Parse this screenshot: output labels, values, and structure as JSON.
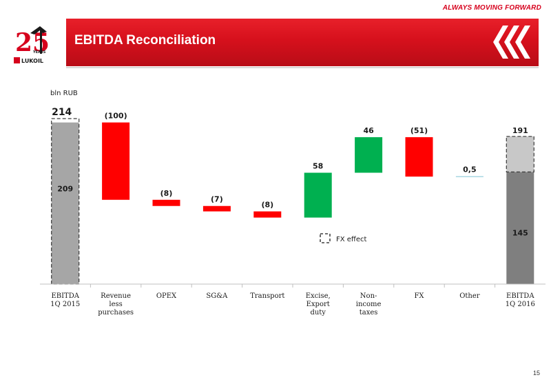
{
  "header": {
    "tagline": "ALWAYS MOVING FORWARD",
    "title": "EBITDA Reconciliation",
    "logo_years": "YEARS",
    "logo_number": "25",
    "logo_brand": "LUKOIL"
  },
  "colors": {
    "start_bar": "#a6a6a6",
    "end_bar": "#7f7f7f",
    "fx_effect_bar": "#c8c8c8",
    "negative": "#ff0000",
    "positive": "#00b050",
    "neutral": "#92cddc",
    "brand_red": "#d6001c"
  },
  "chart_data": {
    "type": "bar",
    "subtype": "waterfall",
    "unit": "bln RUB",
    "ylim": [
      0,
      280
    ],
    "categories": [
      "EBITDA\n1Q 2015",
      "Revenue\nless\npurchases",
      "OPEX",
      "SG&A",
      "Transport",
      "Excise,\nExport\nduty",
      "Non-\nincome\ntaxes",
      "FX",
      "Other",
      "EBITDA\n1Q 2016"
    ],
    "steps": [
      {
        "kind": "total",
        "value": 209,
        "fx_effect_total": 214,
        "value_label": "209",
        "total_label": "214"
      },
      {
        "kind": "delta",
        "value": -100,
        "value_label": "(100)"
      },
      {
        "kind": "delta",
        "value": -8,
        "value_label": "(8)"
      },
      {
        "kind": "delta",
        "value": -7,
        "value_label": "(7)"
      },
      {
        "kind": "delta",
        "value": -8,
        "value_label": "(8)"
      },
      {
        "kind": "delta",
        "value": 58,
        "value_label": "58"
      },
      {
        "kind": "delta",
        "value": 46,
        "value_label": "46"
      },
      {
        "kind": "delta",
        "value": -51,
        "value_label": "(51)"
      },
      {
        "kind": "delta",
        "value": 0.5,
        "value_label": "0,5"
      },
      {
        "kind": "total",
        "value": 145,
        "fx_effect_total": 191,
        "value_label": "145",
        "total_label": "191"
      }
    ],
    "legend": {
      "label": "FX effect",
      "style": "dashed-box"
    }
  },
  "footer": {
    "page_number": "15"
  }
}
